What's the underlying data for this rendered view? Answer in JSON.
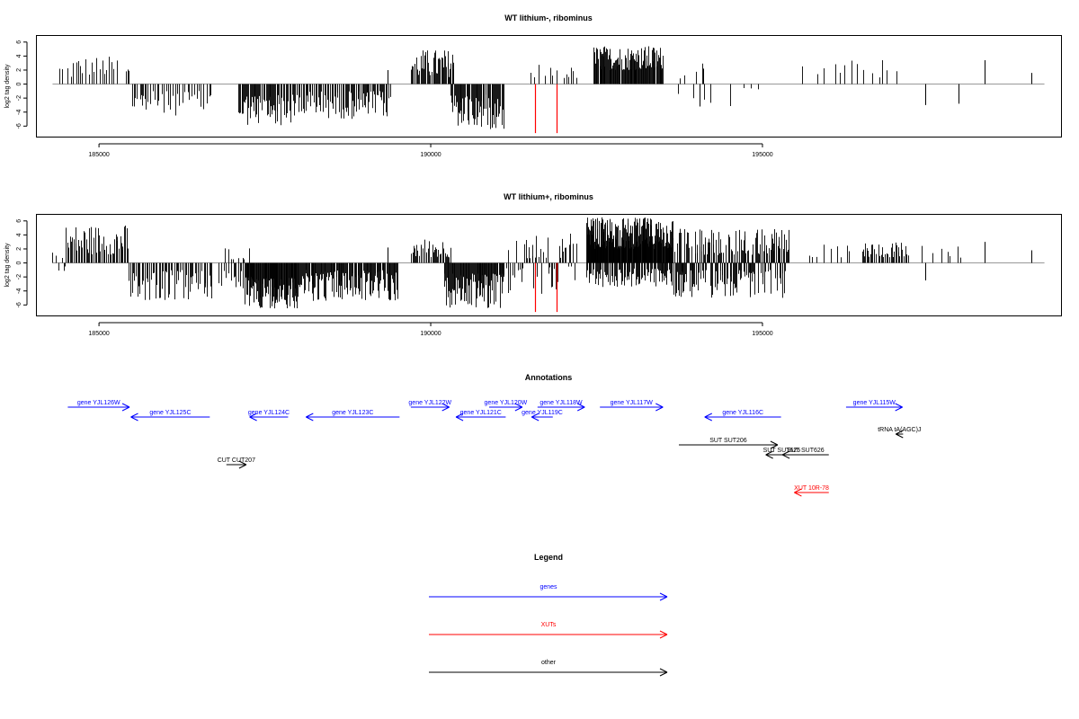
{
  "colors": {
    "gene": "#0000ff",
    "xut": "#ff0000",
    "other": "#000000",
    "baseline": "#999999"
  },
  "annotations_title": "Annotations",
  "legend_title": "Legend",
  "legend": [
    {
      "label": "genes",
      "color": "#0000ff"
    },
    {
      "label": "XUTs",
      "color": "#ff0000"
    },
    {
      "label": "other",
      "color": "#000000"
    }
  ],
  "annotations": [
    {
      "label": "gene YJL126W",
      "start": 184530,
      "end": 185460,
      "strand": "+",
      "row": 0,
      "kind": "gene"
    },
    {
      "label": "gene YJL125C",
      "start": 185480,
      "end": 186670,
      "strand": "-",
      "row": 1,
      "kind": "gene"
    },
    {
      "label": "gene YJL124C",
      "start": 187270,
      "end": 187850,
      "strand": "-",
      "row": 1,
      "kind": "gene"
    },
    {
      "label": "gene YJL123C",
      "start": 188120,
      "end": 189530,
      "strand": "-",
      "row": 1,
      "kind": "gene"
    },
    {
      "label": "gene YJL122W",
      "start": 189700,
      "end": 190280,
      "strand": "+",
      "row": 0,
      "kind": "gene"
    },
    {
      "label": "gene YJL121C",
      "start": 190380,
      "end": 191130,
      "strand": "-",
      "row": 1,
      "kind": "gene"
    },
    {
      "label": "gene YJL120W",
      "start": 190880,
      "end": 191380,
      "strand": "+",
      "row": 0,
      "kind": "gene"
    },
    {
      "label": "gene YJL119C",
      "start": 191520,
      "end": 191840,
      "strand": "-",
      "row": 1,
      "kind": "gene"
    },
    {
      "label": "gene YJL118W",
      "start": 191610,
      "end": 192320,
      "strand": "+",
      "row": 0,
      "kind": "gene"
    },
    {
      "label": "gene YJL117W",
      "start": 192550,
      "end": 193500,
      "strand": "+",
      "row": 0,
      "kind": "gene"
    },
    {
      "label": "gene YJL116C",
      "start": 194130,
      "end": 195280,
      "strand": "-",
      "row": 1,
      "kind": "gene"
    },
    {
      "label": "gene YJL115W",
      "start": 196260,
      "end": 197110,
      "strand": "+",
      "row": 0,
      "kind": "gene"
    },
    {
      "label": "SUT SUT206",
      "start": 193740,
      "end": 195230,
      "strand": "+",
      "row": 3,
      "kind": "other"
    },
    {
      "label": "SUT SUT625",
      "start": 195050,
      "end": 195530,
      "strand": "-",
      "row": 4,
      "kind": "other"
    },
    {
      "label": "SUT SUT626",
      "start": 195300,
      "end": 196000,
      "strand": "-",
      "row": 4,
      "kind": "other"
    },
    {
      "label": "tRNA tA(AGC)J",
      "start": 197010,
      "end": 197120,
      "strand": "-",
      "row": 2,
      "kind": "other"
    },
    {
      "label": "CUT CUT207",
      "start": 186920,
      "end": 187220,
      "strand": "+",
      "row": 5,
      "kind": "other"
    },
    {
      "label": "XUT 10R-78",
      "start": 195480,
      "end": 196000,
      "strand": "-",
      "row": 7,
      "kind": "xut"
    }
  ],
  "chart_data": [
    {
      "type": "bar",
      "title": "WT lithium-, ribominus",
      "xlabel": "",
      "ylabel": "log2 tag density",
      "xlim": [
        184050,
        199500
      ],
      "ylim": [
        -7.5,
        7
      ],
      "x_ticks": [
        185000,
        190000,
        195000
      ],
      "y_ticks": [
        6,
        4,
        2,
        0,
        -2,
        -4,
        -6
      ],
      "baseline_x": [
        184300,
        199250
      ],
      "grid": false,
      "dense_regions": [
        {
          "start": 184400,
          "end": 184600,
          "mode": "pos",
          "min": 0.8,
          "max": 3.2,
          "gap": 50
        },
        {
          "start": 184600,
          "end": 185300,
          "mode": "pos",
          "min": 1.2,
          "max": 4.0,
          "gap": 40
        },
        {
          "start": 185400,
          "end": 185450,
          "mode": "pos",
          "min": 1.2,
          "max": 2.6,
          "gap": 25
        },
        {
          "start": 185500,
          "end": 186700,
          "mode": "neg",
          "min": 1.0,
          "max": 4.5,
          "gap": 30
        },
        {
          "start": 187100,
          "end": 187950,
          "mode": "neg",
          "min": 1.5,
          "max": 6.0,
          "gap": 14
        },
        {
          "start": 187950,
          "end": 189400,
          "mode": "neg",
          "min": 1.0,
          "max": 5.0,
          "gap": 18
        },
        {
          "start": 189700,
          "end": 190350,
          "mode": "pos",
          "min": 1.0,
          "max": 5.0,
          "gap": 15
        },
        {
          "start": 190300,
          "end": 191100,
          "mode": "neg",
          "min": 1.5,
          "max": 6.5,
          "gap": 13
        },
        {
          "start": 191500,
          "end": 191900,
          "mode": "pos",
          "min": 0.8,
          "max": 3.0,
          "gap": 60
        },
        {
          "start": 192000,
          "end": 192200,
          "mode": "pos",
          "min": 0.8,
          "max": 2.5,
          "gap": 40
        },
        {
          "start": 192450,
          "end": 193500,
          "mode": "pos",
          "min": 2.0,
          "max": 5.5,
          "gap": 10
        },
        {
          "start": 193720,
          "end": 195050,
          "mode": "sparse",
          "min": 0.5,
          "max": 3.5,
          "gap": 130
        },
        {
          "start": 195600,
          "end": 197150,
          "mode": "sparsepos",
          "min": 0.8,
          "max": 3.5,
          "gap": 110
        }
      ],
      "spikes": [
        {
          "x": 189350,
          "y": 2.0
        },
        {
          "x": 194100,
          "y": 2.2
        },
        {
          "x": 194050,
          "y": -3.2
        },
        {
          "x": 197450,
          "y": -3.0
        },
        {
          "x": 197950,
          "y": -2.8
        },
        {
          "x": 198350,
          "y": 3.4
        },
        {
          "x": 199050,
          "y": 1.6
        }
      ],
      "highlights": [
        {
          "x": 191570,
          "y": -7.0,
          "color": "#ff0000"
        },
        {
          "x": 191900,
          "y": -7.0,
          "color": "#ff0000"
        }
      ]
    },
    {
      "type": "bar",
      "title": "WT lithium+, ribominus",
      "xlabel": "",
      "ylabel": "log2 tag density",
      "xlim": [
        184050,
        199500
      ],
      "ylim": [
        -7.5,
        7
      ],
      "x_ticks": [
        185000,
        190000,
        195000
      ],
      "y_ticks": [
        6,
        4,
        2,
        0,
        -2,
        -4,
        -6
      ],
      "baseline_x": [
        184300,
        199250
      ],
      "grid": false,
      "dense_regions": [
        {
          "start": 184300,
          "end": 184500,
          "mode": "mixed",
          "min": 0.5,
          "max": 2.2,
          "gap": 35
        },
        {
          "start": 184500,
          "end": 185450,
          "mode": "pos",
          "min": 1.2,
          "max": 5.5,
          "gap": 18
        },
        {
          "start": 185450,
          "end": 186700,
          "mode": "neg",
          "min": 1.0,
          "max": 5.5,
          "gap": 22
        },
        {
          "start": 186800,
          "end": 187200,
          "mode": "neg",
          "min": 0.8,
          "max": 4.0,
          "gap": 30
        },
        {
          "start": 186900,
          "end": 187300,
          "mode": "pos",
          "min": 0.5,
          "max": 2.5,
          "gap": 60
        },
        {
          "start": 187200,
          "end": 188000,
          "mode": "neg",
          "min": 2.0,
          "max": 6.5,
          "gap": 8
        },
        {
          "start": 188000,
          "end": 189500,
          "mode": "neg",
          "min": 1.0,
          "max": 5.5,
          "gap": 12
        },
        {
          "start": 189700,
          "end": 190300,
          "mode": "pos",
          "min": 0.8,
          "max": 3.5,
          "gap": 18
        },
        {
          "start": 190200,
          "end": 191100,
          "mode": "neg",
          "min": 1.5,
          "max": 6.5,
          "gap": 10
        },
        {
          "start": 191100,
          "end": 192200,
          "mode": "mixed",
          "min": 0.5,
          "max": 4.5,
          "gap": 22
        },
        {
          "start": 192350,
          "end": 193650,
          "mode": "pos",
          "min": 2.0,
          "max": 6.5,
          "gap": 6
        },
        {
          "start": 192350,
          "end": 193650,
          "mode": "neg",
          "min": 0.8,
          "max": 3.5,
          "gap": 14
        },
        {
          "start": 193650,
          "end": 195400,
          "mode": "mixed",
          "min": 1.0,
          "max": 5.0,
          "gap": 9
        },
        {
          "start": 195700,
          "end": 196400,
          "mode": "sparsepos",
          "min": 0.8,
          "max": 2.8,
          "gap": 70
        },
        {
          "start": 196500,
          "end": 197200,
          "mode": "pos",
          "min": 0.8,
          "max": 3.0,
          "gap": 20
        },
        {
          "start": 197400,
          "end": 198000,
          "mode": "sparsepos",
          "min": 0.5,
          "max": 2.5,
          "gap": 90
        }
      ],
      "spikes": [
        {
          "x": 189350,
          "y": 2.2
        },
        {
          "x": 197450,
          "y": -2.5
        },
        {
          "x": 198350,
          "y": 3.0
        },
        {
          "x": 199050,
          "y": 1.8
        }
      ],
      "highlights": [
        {
          "x": 191570,
          "y": -7.0,
          "color": "#ff0000"
        },
        {
          "x": 191900,
          "y": -7.0,
          "color": "#ff0000"
        }
      ]
    }
  ]
}
